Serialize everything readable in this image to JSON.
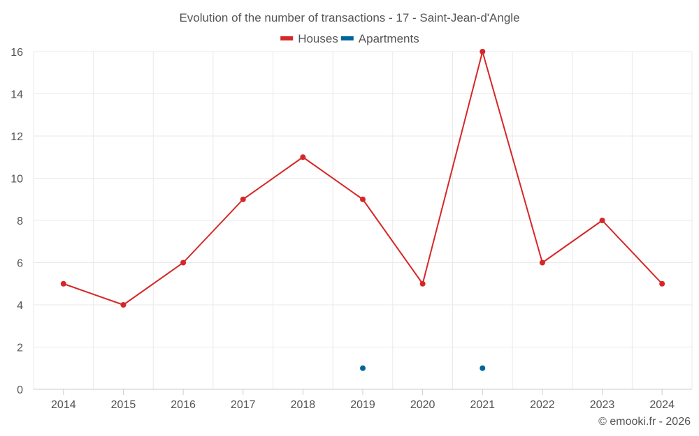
{
  "chart_data": {
    "type": "line",
    "title": "Evolution of the number of transactions - 17 - Saint-Jean-d'Angle",
    "xlabel": "",
    "ylabel": "",
    "categories": [
      "2014",
      "2015",
      "2016",
      "2017",
      "2018",
      "2019",
      "2020",
      "2021",
      "2022",
      "2023",
      "2024"
    ],
    "ylim": [
      0,
      16
    ],
    "yticks": [
      0,
      2,
      4,
      6,
      8,
      10,
      12,
      14,
      16
    ],
    "grid": true,
    "legend_position": "top-center",
    "series": [
      {
        "name": "Houses",
        "color": "#d62728",
        "values": [
          5,
          4,
          6,
          9,
          11,
          9,
          5,
          16,
          6,
          8,
          5
        ]
      },
      {
        "name": "Apartments",
        "color": "#006699",
        "values": [
          null,
          null,
          null,
          null,
          null,
          1,
          null,
          1,
          null,
          null,
          null
        ]
      }
    ]
  },
  "credit": "© emooki.fr - 2026"
}
